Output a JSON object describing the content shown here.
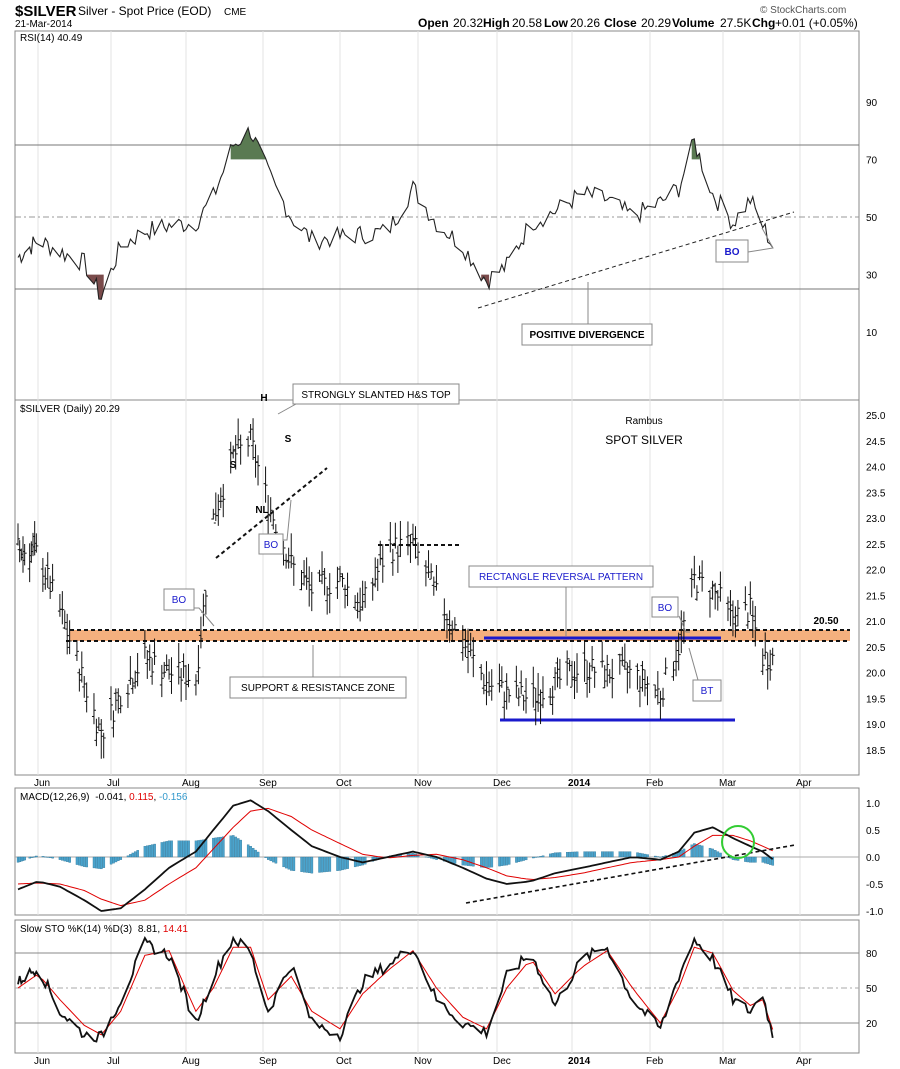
{
  "header": {
    "symbol": "$SILVER",
    "name": "Silver - Spot Price (EOD)",
    "exchange": "CME",
    "date": "21-Mar-2014",
    "open_label": "Open",
    "open": "20.32",
    "high_label": "High",
    "high": "20.58",
    "low_label": "Low",
    "low": "20.26",
    "close_label": "Close",
    "close": "20.29",
    "volume_label": "Volume",
    "volume": "27.5K",
    "chg_label": "Chg",
    "chg": "+0.01 (+0.05%)",
    "watermark": "© StockCharts.com"
  },
  "x_axis": {
    "months": [
      "Jun",
      "Jul",
      "Aug",
      "Sep",
      "Oct",
      "Nov",
      "Dec",
      "2014",
      "Feb",
      "Mar",
      "Apr"
    ]
  },
  "rsi_panel": {
    "title": "RSI(14) 40.49",
    "ticks": [
      "90",
      "70",
      "50",
      "30",
      "10"
    ],
    "annotations": {
      "bo": "BO",
      "divergence": "POSITIVE DIVERGENCE"
    }
  },
  "price_panel": {
    "title": "$SILVER (Daily) 20.29",
    "ticks": [
      "25.0",
      "24.5",
      "24.0",
      "23.5",
      "23.0",
      "22.5",
      "22.0",
      "21.5",
      "21.0",
      "20.5",
      "20.0",
      "19.5",
      "19.0",
      "18.5"
    ],
    "annotations": {
      "author": "Rambus",
      "subject": "SPOT SILVER",
      "hs_top": "STRONGLY SLANTED H&S TOP",
      "h": "H",
      "s": "S",
      "nl": "NL",
      "bo": "BO",
      "bt": "BT",
      "rectangle": "RECTANGLE REVERSAL PATTERN",
      "sr_zone": "SUPPORT & RESISTANCE ZONE",
      "level": "20.50"
    }
  },
  "macd_panel": {
    "title_prefix": "MACD(12,26,9)",
    "v1": "-0.041",
    "v2": "0.115",
    "v3": "-0.156",
    "ticks": [
      "1.0",
      "0.5",
      "0.0",
      "-0.5",
      "-1.0"
    ]
  },
  "sto_panel": {
    "title_prefix": "Slow STO %K(14) %D(3)",
    "v1": "8.81",
    "v2": "14.41",
    "ticks": [
      "80",
      "50",
      "20"
    ]
  },
  "colors": {
    "overbought_fill": "#5a7a52",
    "oversold_fill": "#7a4b4b",
    "zone": "#f5b07e",
    "rect_line": "#1a1acc",
    "histogram": "#4aa3cc",
    "signal": "#e00000",
    "circle": "#33cc33"
  },
  "chart_data": [
    {
      "type": "line",
      "title": "RSI(14) 40.49",
      "ylim": [
        0,
        100
      ],
      "x": [
        "2013-05-20",
        "2013-06-01",
        "2013-06-10",
        "2013-06-20",
        "2013-06-27",
        "2013-07-05",
        "2013-07-15",
        "2013-07-25",
        "2013-08-05",
        "2013-08-12",
        "2013-08-20",
        "2013-08-27",
        "2013-09-03",
        "2013-09-12",
        "2013-09-20",
        "2013-10-01",
        "2013-10-10",
        "2013-10-20",
        "2013-10-30",
        "2013-11-08",
        "2013-11-18",
        "2013-11-27",
        "2013-12-05",
        "2013-12-15",
        "2013-12-25",
        "2014-01-05",
        "2014-01-15",
        "2014-01-25",
        "2014-02-05",
        "2014-02-12",
        "2014-02-18",
        "2014-02-25",
        "2014-03-05",
        "2014-03-12",
        "2014-03-17",
        "2014-03-21"
      ],
      "values": [
        36,
        42,
        38,
        34,
        22,
        40,
        45,
        47,
        48,
        57,
        75,
        80,
        65,
        50,
        42,
        43,
        44,
        45,
        60,
        48,
        40,
        28,
        33,
        48,
        52,
        58,
        56,
        50,
        55,
        60,
        76,
        58,
        48,
        56,
        47,
        40
      ]
    },
    {
      "type": "bar",
      "title": "$SILVER (Daily) 20.29",
      "ylim": [
        18.3,
        25.2
      ],
      "x": [
        "2013-05-20",
        "2013-06-01",
        "2013-06-10",
        "2013-06-20",
        "2013-06-27",
        "2013-07-05",
        "2013-07-15",
        "2013-07-25",
        "2013-08-05",
        "2013-08-12",
        "2013-08-20",
        "2013-08-27",
        "2013-09-03",
        "2013-09-12",
        "2013-09-20",
        "2013-10-01",
        "2013-10-10",
        "2013-10-20",
        "2013-10-30",
        "2013-11-08",
        "2013-11-18",
        "2013-11-27",
        "2013-12-05",
        "2013-12-15",
        "2013-12-25",
        "2014-01-05",
        "2014-01-15",
        "2014-01-25",
        "2014-02-05",
        "2014-02-12",
        "2014-02-18",
        "2014-02-25",
        "2014-03-05",
        "2014-03-12",
        "2014-03-17",
        "2014-03-21"
      ],
      "values": [
        22.4,
        22.3,
        21.2,
        19.8,
        18.8,
        19.6,
        20.3,
        20.0,
        19.9,
        23.0,
        24.2,
        24.5,
        23.3,
        22.1,
        21.6,
        21.8,
        21.3,
        22.4,
        22.5,
        21.5,
        20.6,
        19.8,
        19.6,
        19.5,
        19.8,
        20.1,
        20.0,
        20.0,
        19.6,
        20.5,
        21.8,
        21.6,
        21.1,
        21.2,
        20.3,
        20.29
      ]
    },
    {
      "type": "line",
      "title": "MACD(12,26,9)",
      "ylim": [
        -1.1,
        1.1
      ],
      "x": [
        "2013-05-20",
        "2013-06-01",
        "2013-06-10",
        "2013-06-20",
        "2013-06-27",
        "2013-07-05",
        "2013-07-15",
        "2013-07-25",
        "2013-08-05",
        "2013-08-12",
        "2013-08-20",
        "2013-08-27",
        "2013-09-03",
        "2013-09-12",
        "2013-09-20",
        "2013-10-01",
        "2013-10-10",
        "2013-10-20",
        "2013-10-30",
        "2013-11-08",
        "2013-11-18",
        "2013-11-27",
        "2013-12-05",
        "2013-12-15",
        "2013-12-25",
        "2014-01-05",
        "2014-01-15",
        "2014-01-25",
        "2014-02-05",
        "2014-02-12",
        "2014-02-18",
        "2014-02-25",
        "2014-03-05",
        "2014-03-12",
        "2014-03-17",
        "2014-03-21"
      ],
      "series": [
        {
          "values": [
            -0.6,
            -0.45,
            -0.55,
            -0.8,
            -1.0,
            -0.95,
            -0.6,
            -0.2,
            0.1,
            0.5,
            0.95,
            1.05,
            0.85,
            0.5,
            0.2,
            0.0,
            -0.1,
            0.0,
            0.1,
            0.0,
            -0.2,
            -0.4,
            -0.5,
            -0.45,
            -0.3,
            -0.2,
            -0.1,
            0.0,
            -0.05,
            0.1,
            0.45,
            0.55,
            0.35,
            0.2,
            0.1,
            -0.041
          ]
        },
        {
          "values": [
            -0.5,
            -0.48,
            -0.5,
            -0.62,
            -0.78,
            -0.9,
            -0.8,
            -0.5,
            -0.2,
            0.15,
            0.55,
            0.85,
            0.9,
            0.75,
            0.5,
            0.25,
            0.05,
            -0.02,
            0.03,
            0.05,
            -0.05,
            -0.2,
            -0.35,
            -0.42,
            -0.38,
            -0.3,
            -0.2,
            -0.1,
            -0.05,
            0.0,
            0.2,
            0.4,
            0.4,
            0.3,
            0.2,
            0.115
          ]
        }
      ]
    },
    {
      "type": "line",
      "title": "Slow STO %K(14) %D(3)",
      "ylim": [
        0,
        100
      ],
      "x": [
        "2013-05-20",
        "2013-06-01",
        "2013-06-10",
        "2013-06-20",
        "2013-06-27",
        "2013-07-05",
        "2013-07-15",
        "2013-07-25",
        "2013-08-05",
        "2013-08-12",
        "2013-08-20",
        "2013-08-27",
        "2013-09-03",
        "2013-09-12",
        "2013-09-20",
        "2013-10-01",
        "2013-10-10",
        "2013-10-20",
        "2013-10-30",
        "2013-11-08",
        "2013-11-18",
        "2013-11-27",
        "2013-12-05",
        "2013-12-15",
        "2013-12-25",
        "2014-01-05",
        "2014-01-15",
        "2014-01-25",
        "2014-02-05",
        "2014-02-12",
        "2014-02-18",
        "2014-02-25",
        "2014-03-05",
        "2014-03-12",
        "2014-03-17",
        "2014-03-21"
      ],
      "series": [
        {
          "values": [
            55,
            68,
            30,
            10,
            8,
            40,
            88,
            78,
            20,
            60,
            93,
            80,
            30,
            70,
            20,
            10,
            55,
            70,
            85,
            40,
            20,
            12,
            60,
            80,
            35,
            75,
            85,
            40,
            15,
            60,
            92,
            75,
            40,
            30,
            45,
            8.81
          ]
        },
        {
          "values": [
            50,
            62,
            40,
            18,
            10,
            30,
            78,
            82,
            30,
            50,
            85,
            85,
            40,
            60,
            30,
            15,
            45,
            65,
            82,
            50,
            25,
            15,
            50,
            75,
            45,
            68,
            82,
            50,
            20,
            50,
            85,
            80,
            48,
            35,
            40,
            14.41
          ]
        }
      ]
    }
  ]
}
